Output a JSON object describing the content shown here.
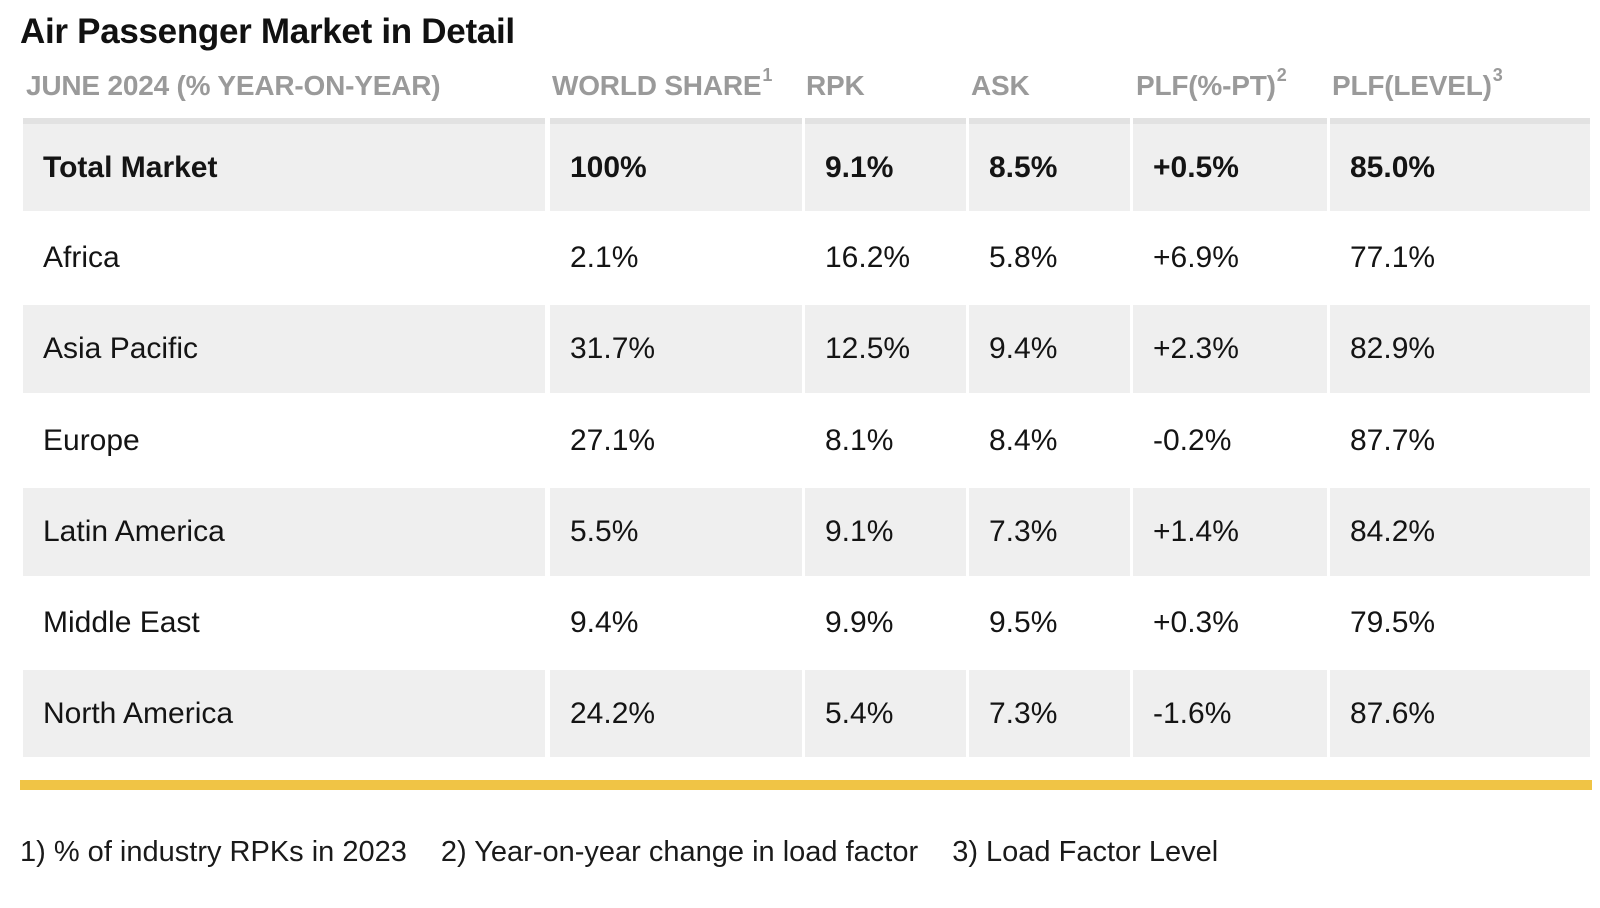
{
  "title": "Air Passenger Market in Detail",
  "header": {
    "period": "JUNE 2024 (% YEAR-ON-YEAR)",
    "world_share": "WORLD SHARE",
    "world_share_note": "1",
    "rpk": "RPK",
    "ask": "ASK",
    "plf_pt": "PLF(%-PT)",
    "plf_pt_note": "2",
    "plf_level": "PLF(LEVEL)",
    "plf_level_note": "3"
  },
  "rows": [
    {
      "region": "Total Market",
      "world_share": "100%",
      "rpk": "9.1%",
      "ask": "8.5%",
      "plf_pt": "+0.5%",
      "plf_level": "85.0%"
    },
    {
      "region": "Africa",
      "world_share": "2.1%",
      "rpk": "16.2%",
      "ask": "5.8%",
      "plf_pt": "+6.9%",
      "plf_level": "77.1%"
    },
    {
      "region": "Asia Pacific",
      "world_share": "31.7%",
      "rpk": "12.5%",
      "ask": "9.4%",
      "plf_pt": "+2.3%",
      "plf_level": "82.9%"
    },
    {
      "region": "Europe",
      "world_share": "27.1%",
      "rpk": "8.1%",
      "ask": "8.4%",
      "plf_pt": "-0.2%",
      "plf_level": "87.7%"
    },
    {
      "region": "Latin America",
      "world_share": "5.5%",
      "rpk": "9.1%",
      "ask": "7.3%",
      "plf_pt": "+1.4%",
      "plf_level": "84.2%"
    },
    {
      "region": "Middle East",
      "world_share": "9.4%",
      "rpk": "9.9%",
      "ask": "9.5%",
      "plf_pt": "+0.3%",
      "plf_level": "79.5%"
    },
    {
      "region": "North America",
      "world_share": "24.2%",
      "rpk": "5.4%",
      "ask": "7.3%",
      "plf_pt": "-1.6%",
      "plf_level": "87.6%"
    }
  ],
  "footnotes": [
    "1) % of industry RPKs in 2023",
    "2) Year-on-year change in load factor",
    "3) Load Factor Level"
  ],
  "colors": {
    "shaded_row": "#efefef",
    "header_text": "#9a9a9a",
    "accent_rule": "#f0c445",
    "divider": "#ffffff"
  }
}
